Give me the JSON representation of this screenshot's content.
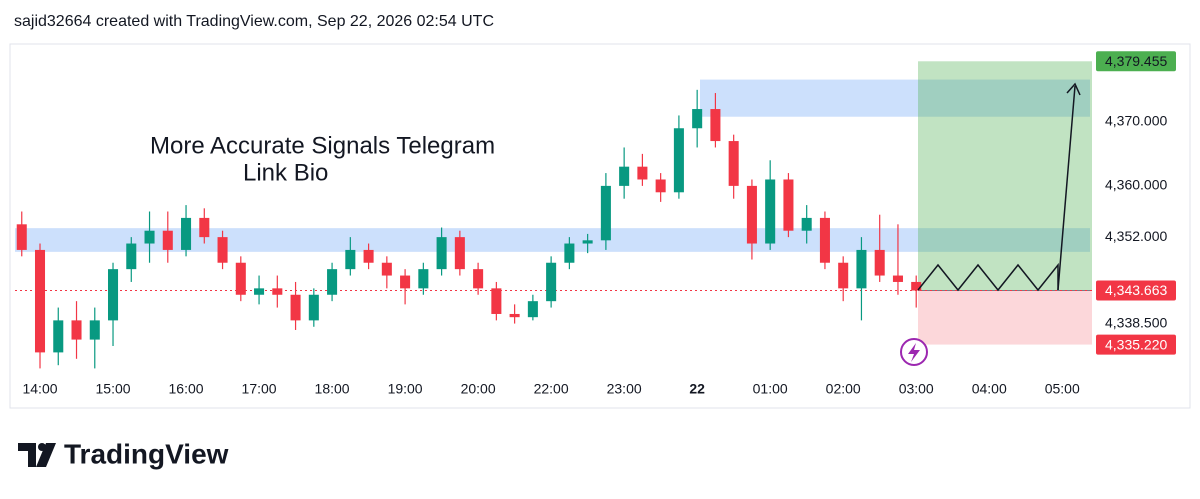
{
  "header": {
    "title": "sajid32664 created with TradingView.com, Sep 22, 2026 02:54 UTC"
  },
  "footer": {
    "brand": "TradingView"
  },
  "chart_data": {
    "type": "candlestick",
    "annotation": [
      "More Accurate Signals Telegram",
      "Link Bio"
    ],
    "up_color": "#089981",
    "down_color": "#f23645",
    "open": [
      4354,
      4350,
      4334,
      4339,
      4336,
      4339,
      4347,
      4351,
      4353,
      4350,
      4355,
      4352,
      4348,
      4343,
      4344,
      4343,
      4339,
      4343,
      4347,
      4350,
      4348,
      4346,
      4344,
      4347,
      4352,
      4347,
      4344,
      4340,
      4339.5,
      4342,
      4348,
      4351,
      4351.5,
      4360,
      4363,
      4361,
      4359,
      4369,
      4372,
      4367,
      4360,
      4351,
      4361,
      4353,
      4355,
      4348,
      4344,
      4350,
      4346,
      4345
    ],
    "high": [
      4356,
      4351,
      4341,
      4342,
      4341,
      4348,
      4352,
      4356,
      4356,
      4357,
      4356.5,
      4353,
      4349,
      4346,
      4346,
      4345,
      4344,
      4348,
      4352,
      4351,
      4349,
      4347,
      4348,
      4353.5,
      4353,
      4348,
      4345,
      4341.5,
      4343,
      4349,
      4352,
      4352.5,
      4362,
      4366,
      4365,
      4362,
      4371,
      4375,
      4374.5,
      4368,
      4361,
      4364,
      4362,
      4357,
      4356,
      4349,
      4352,
      4355.5,
      4354,
      4346
    ],
    "low": [
      4349,
      4331.5,
      4332,
      4333,
      4331.5,
      4335,
      4345,
      4348,
      4348,
      4349,
      4351,
      4347,
      4342,
      4341.5,
      4341,
      4337.5,
      4338,
      4342,
      4346,
      4347,
      4344,
      4341.5,
      4343,
      4346,
      4346,
      4343,
      4339,
      4338.5,
      4339,
      4341,
      4347,
      4349.5,
      4350,
      4358,
      4360,
      4357.5,
      4358,
      4366,
      4366,
      4358,
      4348.5,
      4350,
      4352,
      4351,
      4347,
      4342,
      4339,
      4345,
      4343,
      4341
    ],
    "close": [
      4350,
      4334,
      4339,
      4336,
      4339,
      4347,
      4351,
      4353,
      4350,
      4355,
      4352,
      4348,
      4343,
      4344,
      4343,
      4339,
      4343,
      4347,
      4350,
      4348,
      4346,
      4344,
      4347,
      4352,
      4347,
      4344,
      4340,
      4339.5,
      4342,
      4348,
      4351,
      4351.5,
      4360,
      4363,
      4361,
      4359,
      4369,
      4372,
      4367,
      4360,
      4351,
      4361,
      4353,
      4355,
      4348,
      4344,
      4350,
      4346,
      4345,
      4343.663
    ],
    "xlim": [
      -0.37,
      58.63
    ],
    "xticks": [
      {
        "value": 1,
        "label": "14:00"
      },
      {
        "value": 5,
        "label": "15:00"
      },
      {
        "value": 9,
        "label": "16:00"
      },
      {
        "value": 13,
        "label": "17:00"
      },
      {
        "value": 17,
        "label": "18:00"
      },
      {
        "value": 21,
        "label": "19:00"
      },
      {
        "value": 25,
        "label": "20:00"
      },
      {
        "value": 29,
        "label": "22:00"
      },
      {
        "value": 33,
        "label": "23:00"
      },
      {
        "value": 37,
        "label": "22"
      },
      {
        "value": 41,
        "label": "01:00"
      },
      {
        "value": 45,
        "label": "02:00"
      },
      {
        "value": 49,
        "label": "03:00"
      },
      {
        "value": 53,
        "label": "04:00"
      },
      {
        "value": 57,
        "label": "05:00"
      }
    ],
    "ylim": [
      4330.47,
      4382
    ],
    "yticks": [
      {
        "value": 4370,
        "label": "4,370.000"
      },
      {
        "value": 4360,
        "label": "4,360.000"
      },
      {
        "value": 4352,
        "label": "4,352.000"
      },
      {
        "value": 4338.5,
        "label": "4,338.500"
      }
    ],
    "zones": [
      {
        "low": 4349.7,
        "high": 4353.4,
        "color": "#bbd6fb"
      },
      {
        "low": 4370.8,
        "high": 4376.6,
        "color": "#bbd6fb"
      }
    ],
    "position": {
      "target": {
        "value": 4379.455,
        "label": "4,379.455",
        "color": "#4caf50"
      },
      "entry": {
        "value": 4343.663,
        "label": "4,343.663",
        "color": "#f23645"
      },
      "stop": {
        "value": 4335.22,
        "label": "4,335.220",
        "color": "#f23645"
      }
    }
  }
}
